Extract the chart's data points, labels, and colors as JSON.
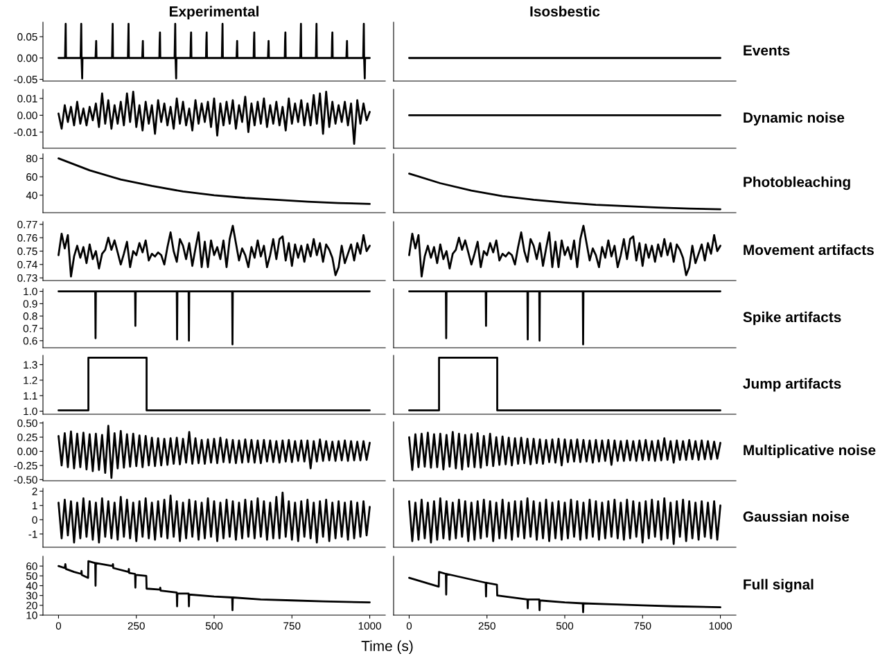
{
  "chart_data": [
    {
      "type": "line",
      "title": "Experimental",
      "xlim": [
        -50,
        1050
      ],
      "ylim": [
        -0.054,
        0.084
      ],
      "yticks": [
        {
          "value": -0.05,
          "label": "-0.05"
        },
        {
          "value": 0,
          "label": "0.00"
        },
        {
          "value": 0.05,
          "label": "0.05"
        }
      ],
      "tick_labels": "y",
      "series": [
        {
          "color": "#000000",
          "x": [
            0,
            21,
            22,
            23,
            24,
            71,
            72,
            73,
            74,
            76,
            77,
            119,
            121,
            122,
            172,
            173,
            174,
            175,
            223,
            224,
            225,
            226,
            269,
            271,
            272,
            324,
            325,
            326,
            327,
            373,
            374,
            375,
            376,
            378,
            379,
            424,
            425,
            426,
            427,
            474,
            475,
            476,
            477,
            525,
            527,
            528,
            572,
            574,
            575,
            627,
            628,
            629,
            630,
            673,
            675,
            676,
            727,
            728,
            729,
            730,
            777,
            778,
            779,
            780,
            827,
            828,
            829,
            830,
            878,
            879,
            880,
            881,
            925,
            927,
            928,
            979,
            980,
            981,
            982,
            984,
            985,
            1000
          ],
          "values": [
            0,
            0,
            0.04,
            0.08,
            0,
            0,
            0.04,
            0.08,
            0,
            -0.048,
            0,
            0,
            0.04,
            0,
            0,
            0.04,
            0.08,
            0,
            0,
            0.04,
            0.08,
            0,
            0,
            0.04,
            0,
            0,
            0.04,
            0.06,
            0,
            0,
            0.04,
            0.08,
            0,
            -0.048,
            0,
            0,
            0.04,
            0.06,
            0,
            0,
            0.04,
            0.06,
            0,
            0,
            0.08,
            0,
            0,
            0.04,
            0,
            0,
            0.04,
            0.06,
            0,
            0,
            0.04,
            0,
            0,
            0.04,
            0.06,
            0,
            0,
            0.04,
            0.08,
            0,
            0,
            0.04,
            0.08,
            0,
            0,
            0.04,
            0.06,
            0,
            0,
            0.04,
            0,
            0,
            0.04,
            0.08,
            0,
            -0.048,
            0,
            0
          ]
        }
      ]
    },
    {
      "type": "line",
      "title": "Isosbestic",
      "ylabel": "Events",
      "xlim": [
        -50,
        1050
      ],
      "ylim": [
        -0.054,
        0.084
      ],
      "tick_labels": false,
      "series": [
        {
          "color": "#000000",
          "x": [
            0,
            1000
          ],
          "values": [
            0,
            0
          ]
        }
      ]
    },
    {
      "type": "line",
      "xlim": [
        -50,
        1050
      ],
      "ylim": [
        -0.0196,
        0.0154
      ],
      "yticks": [
        {
          "value": -0.01,
          "label": "-0.01"
        },
        {
          "value": 0,
          "label": "0.00"
        },
        {
          "value": 0.01,
          "label": "0.01"
        }
      ],
      "tick_labels": "y",
      "series": [
        {
          "color": "#000000",
          "x": [
            0,
            10,
            20,
            30,
            40,
            50,
            60,
            70,
            80,
            90,
            100,
            110,
            120,
            130,
            140,
            150,
            160,
            170,
            180,
            190,
            200,
            210,
            220,
            230,
            240,
            250,
            260,
            270,
            280,
            290,
            300,
            310,
            320,
            330,
            340,
            350,
            360,
            370,
            380,
            390,
            400,
            410,
            420,
            430,
            440,
            450,
            460,
            470,
            480,
            490,
            500,
            510,
            520,
            530,
            540,
            550,
            560,
            570,
            580,
            590,
            600,
            610,
            620,
            630,
            640,
            650,
            660,
            670,
            680,
            690,
            700,
            710,
            720,
            730,
            740,
            750,
            760,
            770,
            780,
            790,
            800,
            810,
            820,
            830,
            840,
            850,
            860,
            870,
            880,
            890,
            900,
            910,
            920,
            930,
            940,
            950,
            960,
            970,
            980,
            990,
            1000
          ],
          "values": [
            0.001,
            -0.008,
            0.006,
            -0.004,
            0.005,
            -0.006,
            0.008,
            -0.005,
            0.004,
            -0.006,
            0.005,
            -0.003,
            0.007,
            -0.007,
            0.013,
            -0.005,
            0.009,
            -0.008,
            0.006,
            -0.005,
            0.008,
            -0.006,
            0.013,
            -0.004,
            0.014,
            -0.007,
            0.006,
            -0.009,
            0.008,
            -0.005,
            0.006,
            -0.011,
            0.009,
            -0.004,
            0.007,
            -0.006,
            0.005,
            -0.008,
            0.01,
            -0.005,
            0.008,
            -0.006,
            0.004,
            -0.009,
            0.009,
            -0.005,
            0.007,
            -0.004,
            0.008,
            -0.007,
            0.01,
            -0.012,
            0.007,
            -0.006,
            0.008,
            -0.005,
            0.009,
            -0.008,
            0.006,
            -0.004,
            0.011,
            -0.01,
            0.007,
            -0.006,
            0.008,
            -0.005,
            0.01,
            -0.007,
            0.006,
            -0.005,
            0.008,
            -0.006,
            0.005,
            -0.009,
            0.01,
            -0.005,
            0.007,
            -0.004,
            0.009,
            -0.006,
            0.007,
            -0.006,
            0.012,
            -0.005,
            0.013,
            -0.011,
            0.014,
            -0.007,
            0.008,
            -0.005,
            0.006,
            -0.004,
            0.008,
            -0.006,
            0.007,
            -0.017,
            0.009,
            -0.005,
            0.007,
            -0.003,
            0.002
          ]
        }
      ]
    },
    {
      "type": "line",
      "ylabel": "Dynamic noise",
      "xlim": [
        -50,
        1050
      ],
      "ylim": [
        -0.0196,
        0.0154
      ],
      "tick_labels": false,
      "series": [
        {
          "color": "#000000",
          "x": [
            0,
            1000
          ],
          "values": [
            0,
            0
          ]
        }
      ]
    },
    {
      "type": "line",
      "xlim": [
        -50,
        1050
      ],
      "ylim": [
        21,
        85
      ],
      "yticks": [
        40,
        60,
        80
      ],
      "tick_labels": "y",
      "series": [
        {
          "color": "#000000",
          "x": [
            0,
            100,
            200,
            300,
            400,
            500,
            600,
            700,
            800,
            900,
            1000
          ],
          "values": [
            80,
            67,
            57,
            50,
            44,
            40,
            37,
            35,
            33,
            31.5,
            30.5
          ]
        }
      ]
    },
    {
      "type": "line",
      "ylabel": "Photobleaching",
      "xlim": [
        -50,
        1050
      ],
      "ylim": [
        21,
        85
      ],
      "tick_labels": false,
      "series": [
        {
          "color": "#000000",
          "x": [
            0,
            100,
            200,
            300,
            400,
            500,
            600,
            700,
            800,
            900,
            1000
          ],
          "values": [
            63.5,
            53,
            45,
            39,
            35,
            32,
            29.5,
            28,
            26.5,
            25.5,
            24.7
          ]
        }
      ]
    },
    {
      "type": "line",
      "xlim": [
        -50,
        1050
      ],
      "ylim": [
        0.728,
        0.772
      ],
      "yticks": [
        0.73,
        0.74,
        0.75,
        0.76,
        0.77
      ],
      "tick_labels": "y",
      "series": [
        {
          "color": "#000000",
          "x": [
            0,
            10,
            20,
            30,
            40,
            50,
            60,
            70,
            80,
            90,
            100,
            110,
            120,
            130,
            140,
            150,
            160,
            170,
            180,
            190,
            200,
            210,
            220,
            230,
            240,
            250,
            260,
            270,
            280,
            290,
            300,
            310,
            320,
            330,
            340,
            350,
            360,
            370,
            380,
            390,
            400,
            410,
            420,
            430,
            440,
            450,
            460,
            470,
            480,
            490,
            500,
            510,
            520,
            530,
            540,
            550,
            560,
            570,
            580,
            590,
            600,
            610,
            620,
            630,
            640,
            650,
            660,
            670,
            680,
            690,
            700,
            710,
            720,
            730,
            740,
            750,
            760,
            770,
            780,
            790,
            800,
            810,
            820,
            830,
            840,
            850,
            860,
            870,
            880,
            890,
            900,
            910,
            920,
            930,
            940,
            950,
            960,
            970,
            980,
            990,
            1000
          ],
          "values": [
            0.747,
            0.763,
            0.752,
            0.762,
            0.731,
            0.746,
            0.754,
            0.745,
            0.753,
            0.741,
            0.755,
            0.744,
            0.75,
            0.737,
            0.748,
            0.751,
            0.76,
            0.751,
            0.758,
            0.749,
            0.74,
            0.748,
            0.757,
            0.738,
            0.75,
            0.747,
            0.756,
            0.749,
            0.758,
            0.743,
            0.748,
            0.746,
            0.749,
            0.747,
            0.74,
            0.753,
            0.764,
            0.75,
            0.742,
            0.759,
            0.754,
            0.744,
            0.756,
            0.739,
            0.752,
            0.764,
            0.738,
            0.757,
            0.738,
            0.758,
            0.747,
            0.753,
            0.744,
            0.758,
            0.738,
            0.759,
            0.769,
            0.756,
            0.743,
            0.752,
            0.747,
            0.738,
            0.753,
            0.745,
            0.758,
            0.746,
            0.754,
            0.738,
            0.747,
            0.759,
            0.744,
            0.759,
            0.761,
            0.743,
            0.756,
            0.739,
            0.755,
            0.745,
            0.754,
            0.742,
            0.755,
            0.746,
            0.759,
            0.747,
            0.756,
            0.742,
            0.755,
            0.751,
            0.745,
            0.732,
            0.738,
            0.754,
            0.741,
            0.748,
            0.755,
            0.743,
            0.756,
            0.748,
            0.762,
            0.75,
            0.754
          ]
        }
      ]
    },
    {
      "type": "line",
      "ylabel": "Movement artifacts",
      "xlim": [
        -50,
        1050
      ],
      "ylim": [
        0.728,
        0.772
      ],
      "tick_labels": false,
      "series": [
        {
          "color": "#000000",
          "x": [
            0,
            10,
            20,
            30,
            40,
            50,
            60,
            70,
            80,
            90,
            100,
            110,
            120,
            130,
            140,
            150,
            160,
            170,
            180,
            190,
            200,
            210,
            220,
            230,
            240,
            250,
            260,
            270,
            280,
            290,
            300,
            310,
            320,
            330,
            340,
            350,
            360,
            370,
            380,
            390,
            400,
            410,
            420,
            430,
            440,
            450,
            460,
            470,
            480,
            490,
            500,
            510,
            520,
            530,
            540,
            550,
            560,
            570,
            580,
            590,
            600,
            610,
            620,
            630,
            640,
            650,
            660,
            670,
            680,
            690,
            700,
            710,
            720,
            730,
            740,
            750,
            760,
            770,
            780,
            790,
            800,
            810,
            820,
            830,
            840,
            850,
            860,
            870,
            880,
            890,
            900,
            910,
            920,
            930,
            940,
            950,
            960,
            970,
            980,
            990,
            1000
          ],
          "values": [
            0.747,
            0.763,
            0.752,
            0.762,
            0.731,
            0.746,
            0.754,
            0.745,
            0.753,
            0.741,
            0.755,
            0.744,
            0.75,
            0.737,
            0.748,
            0.751,
            0.76,
            0.751,
            0.758,
            0.749,
            0.74,
            0.748,
            0.757,
            0.738,
            0.75,
            0.747,
            0.756,
            0.749,
            0.758,
            0.743,
            0.748,
            0.746,
            0.749,
            0.747,
            0.74,
            0.753,
            0.764,
            0.75,
            0.742,
            0.759,
            0.754,
            0.744,
            0.756,
            0.739,
            0.752,
            0.764,
            0.738,
            0.757,
            0.738,
            0.758,
            0.747,
            0.753,
            0.744,
            0.758,
            0.738,
            0.759,
            0.769,
            0.756,
            0.743,
            0.752,
            0.747,
            0.738,
            0.753,
            0.745,
            0.758,
            0.746,
            0.754,
            0.738,
            0.747,
            0.759,
            0.744,
            0.759,
            0.761,
            0.743,
            0.756,
            0.739,
            0.755,
            0.745,
            0.754,
            0.742,
            0.755,
            0.746,
            0.759,
            0.747,
            0.756,
            0.742,
            0.755,
            0.751,
            0.745,
            0.732,
            0.738,
            0.754,
            0.741,
            0.748,
            0.755,
            0.743,
            0.756,
            0.748,
            0.762,
            0.75,
            0.754
          ]
        }
      ]
    },
    {
      "type": "line",
      "xlim": [
        -50,
        1050
      ],
      "ylim": [
        0.543,
        1.02
      ],
      "yticks": [
        0.6,
        0.7,
        0.8,
        0.9,
        {
          "value": 1,
          "label": "1.0"
        }
      ],
      "tick_labels": "y",
      "series": [
        {
          "color": "#000000",
          "x": [
            0,
            118,
            119,
            120,
            246,
            247,
            248,
            380,
            381,
            382,
            418,
            419,
            420,
            558,
            559,
            560,
            1000
          ],
          "values": [
            1,
            1,
            0.62,
            1,
            1,
            0.72,
            1,
            1,
            0.61,
            1,
            1,
            0.6,
            1,
            1,
            0.57,
            1,
            1
          ]
        }
      ]
    },
    {
      "type": "line",
      "ylabel": "Spike artifacts",
      "xlim": [
        -50,
        1050
      ],
      "ylim": [
        0.543,
        1.02
      ],
      "tick_labels": false,
      "series": [
        {
          "color": "#000000",
          "x": [
            0,
            118,
            119,
            120,
            246,
            247,
            248,
            380,
            381,
            382,
            418,
            419,
            420,
            558,
            559,
            560,
            1000
          ],
          "values": [
            1,
            1,
            0.62,
            1,
            1,
            0.72,
            1,
            1,
            0.61,
            1,
            1,
            0.6,
            1,
            1,
            0.57,
            1,
            1
          ]
        }
      ]
    },
    {
      "type": "line",
      "xlim": [
        -50,
        1050
      ],
      "ylim": [
        0.98,
        1.36
      ],
      "yticks": [
        {
          "value": 1,
          "label": "1.0"
        },
        1.1,
        1.2,
        1.3
      ],
      "tick_labels": "y",
      "series": [
        {
          "color": "#000000",
          "x": [
            0,
            96,
            96,
            283,
            283,
            1000
          ],
          "values": [
            1.005,
            1.005,
            1.345,
            1.345,
            1.005,
            1.005
          ]
        }
      ]
    },
    {
      "type": "line",
      "ylabel": "Jump artifacts",
      "xlim": [
        -50,
        1050
      ],
      "ylim": [
        0.98,
        1.36
      ],
      "tick_labels": false,
      "series": [
        {
          "color": "#000000",
          "x": [
            0,
            96,
            96,
            283,
            283,
            1000
          ],
          "values": [
            1.005,
            1.005,
            1.345,
            1.345,
            1.005,
            1.005
          ]
        }
      ]
    },
    {
      "type": "line",
      "xlim": [
        -50,
        1050
      ],
      "ylim": [
        -0.52,
        0.52
      ],
      "yticks": [
        {
          "value": -0.5,
          "label": "-0.50"
        },
        {
          "value": -0.25,
          "label": "-0.25"
        },
        {
          "value": 0,
          "label": "0.00"
        },
        {
          "value": 0.25,
          "label": "0.25"
        },
        {
          "value": 0.5,
          "label": "0.50"
        }
      ],
      "tick_labels": "y",
      "series": [
        {
          "color": "#000000",
          "x": [
            0,
            10,
            20,
            30,
            40,
            50,
            60,
            70,
            80,
            90,
            100,
            110,
            120,
            130,
            140,
            150,
            160,
            170,
            180,
            190,
            200,
            210,
            220,
            230,
            240,
            250,
            260,
            270,
            280,
            290,
            300,
            310,
            320,
            330,
            340,
            350,
            360,
            370,
            380,
            390,
            400,
            410,
            420,
            430,
            440,
            450,
            460,
            470,
            480,
            490,
            500,
            510,
            520,
            530,
            540,
            550,
            560,
            570,
            580,
            590,
            600,
            610,
            620,
            630,
            640,
            650,
            660,
            670,
            680,
            690,
            700,
            710,
            720,
            730,
            740,
            750,
            760,
            770,
            780,
            790,
            800,
            810,
            820,
            830,
            840,
            850,
            860,
            870,
            880,
            890,
            900,
            910,
            920,
            930,
            940,
            950,
            960,
            970,
            980,
            990,
            1000
          ],
          "values": [
            0.27,
            -0.25,
            0.32,
            -0.28,
            0.35,
            -0.3,
            0.31,
            -0.28,
            0.33,
            -0.32,
            0.3,
            -0.35,
            0.31,
            -0.33,
            0.29,
            -0.38,
            0.45,
            -0.47,
            0.32,
            -0.3,
            0.36,
            -0.29,
            0.3,
            -0.27,
            0.31,
            -0.26,
            0.28,
            -0.28,
            0.27,
            -0.25,
            0.24,
            -0.26,
            0.23,
            -0.25,
            0.22,
            -0.24,
            0.23,
            -0.22,
            0.24,
            -0.23,
            0.22,
            -0.2,
            0.34,
            -0.22,
            0.23,
            -0.21,
            0.2,
            -0.22,
            0.21,
            -0.2,
            0.22,
            -0.21,
            0.24,
            -0.19,
            0.21,
            -0.2,
            0.2,
            -0.21,
            0.19,
            -0.2,
            0.21,
            -0.19,
            0.2,
            -0.2,
            0.19,
            -0.21,
            0.2,
            -0.18,
            0.19,
            -0.19,
            0.18,
            -0.2,
            0.19,
            -0.18,
            0.2,
            -0.19,
            0.18,
            -0.17,
            0.19,
            -0.18,
            0.19,
            -0.3,
            0.18,
            -0.18,
            0.21,
            -0.17,
            0.18,
            -0.16,
            0.17,
            -0.17,
            0.18,
            -0.16,
            0.19,
            -0.17,
            0.18,
            -0.16,
            0.17,
            -0.16,
            0.18,
            -0.15,
            0.15
          ]
        }
      ]
    },
    {
      "type": "line",
      "ylabel": "Multiplicative noise",
      "xlim": [
        -50,
        1050
      ],
      "ylim": [
        -0.52,
        0.52
      ],
      "tick_labels": false,
      "series": [
        {
          "color": "#000000",
          "x": [
            0,
            10,
            20,
            30,
            40,
            50,
            60,
            70,
            80,
            90,
            100,
            110,
            120,
            130,
            140,
            150,
            160,
            170,
            180,
            190,
            200,
            210,
            220,
            230,
            240,
            250,
            260,
            270,
            280,
            290,
            300,
            310,
            320,
            330,
            340,
            350,
            360,
            370,
            380,
            390,
            400,
            410,
            420,
            430,
            440,
            450,
            460,
            470,
            480,
            490,
            500,
            510,
            520,
            530,
            540,
            550,
            560,
            570,
            580,
            590,
            600,
            610,
            620,
            630,
            640,
            650,
            660,
            670,
            680,
            690,
            700,
            710,
            720,
            730,
            740,
            750,
            760,
            770,
            780,
            790,
            800,
            810,
            820,
            830,
            840,
            850,
            860,
            870,
            880,
            890,
            900,
            910,
            920,
            930,
            940,
            950,
            960,
            970,
            980,
            990,
            1000
          ],
          "values": [
            0.25,
            -0.33,
            0.3,
            -0.28,
            0.31,
            -0.27,
            0.33,
            -0.29,
            0.3,
            -0.28,
            0.31,
            -0.32,
            0.29,
            -0.27,
            0.34,
            -0.3,
            0.31,
            -0.32,
            0.29,
            -0.27,
            0.3,
            -0.28,
            0.32,
            -0.29,
            0.27,
            -0.25,
            0.31,
            -0.26,
            0.25,
            -0.24,
            0.26,
            -0.23,
            0.24,
            -0.25,
            0.23,
            -0.22,
            0.24,
            -0.21,
            0.22,
            -0.23,
            0.22,
            -0.21,
            0.21,
            -0.22,
            0.2,
            -0.19,
            0.21,
            -0.2,
            0.22,
            -0.25,
            0.21,
            -0.19,
            0.2,
            -0.18,
            0.21,
            -0.19,
            0.2,
            -0.18,
            0.19,
            -0.2,
            0.2,
            -0.18,
            0.19,
            -0.17,
            0.2,
            -0.24,
            0.19,
            -0.17,
            0.18,
            -0.17,
            0.19,
            -0.16,
            0.18,
            -0.17,
            0.19,
            -0.16,
            0.2,
            -0.16,
            0.18,
            -0.17,
            0.19,
            -0.16,
            0.23,
            -0.15,
            0.18,
            -0.2,
            0.19,
            -0.15,
            0.18,
            -0.15,
            0.2,
            -0.14,
            0.18,
            -0.15,
            0.19,
            -0.14,
            0.18,
            -0.14,
            0.17,
            -0.13,
            0.15
          ]
        }
      ]
    },
    {
      "type": "line",
      "xlim": [
        -50,
        1050
      ],
      "ylim": [
        -1.93,
        2.2
      ],
      "yticks": [
        {
          "value": -1,
          "label": "-1"
        },
        0,
        1,
        2
      ],
      "tick_labels": "y",
      "series": [
        {
          "color": "#000000",
          "x": [
            0,
            10,
            20,
            30,
            40,
            50,
            60,
            70,
            80,
            90,
            100,
            110,
            120,
            130,
            140,
            150,
            160,
            170,
            180,
            190,
            200,
            210,
            220,
            230,
            240,
            250,
            260,
            270,
            280,
            290,
            300,
            310,
            320,
            330,
            340,
            350,
            360,
            370,
            380,
            390,
            400,
            410,
            420,
            430,
            440,
            450,
            460,
            470,
            480,
            490,
            500,
            510,
            520,
            530,
            540,
            550,
            560,
            570,
            580,
            590,
            600,
            610,
            620,
            630,
            640,
            650,
            660,
            670,
            680,
            690,
            700,
            710,
            720,
            730,
            740,
            750,
            760,
            770,
            780,
            790,
            800,
            810,
            820,
            830,
            840,
            850,
            860,
            870,
            880,
            890,
            900,
            910,
            920,
            930,
            940,
            950,
            960,
            970,
            980,
            990,
            1000
          ],
          "values": [
            1.2,
            -1.3,
            1.4,
            -1.1,
            1.3,
            -1.6,
            1.2,
            -1.3,
            1.5,
            -1.2,
            1.3,
            -1.4,
            1.2,
            -1.6,
            1.5,
            -1.2,
            1.3,
            -1.3,
            1.2,
            -1.4,
            1.6,
            -1.2,
            1.4,
            -1.3,
            1.2,
            -1.5,
            1.3,
            -1.2,
            1.5,
            -1.3,
            1.2,
            -1.4,
            1.3,
            -1.2,
            1.4,
            -1.3,
            1.7,
            -1.2,
            1.3,
            -1.5,
            1.2,
            -1.3,
            1.4,
            -1.2,
            1.3,
            -1.4,
            1.2,
            -1.3,
            1.5,
            -1.2,
            1.3,
            -1.5,
            1.2,
            -1.3,
            1.4,
            -1.2,
            1.3,
            -1.4,
            1.2,
            -1.3,
            1.4,
            -1.2,
            1.3,
            -1.3,
            1.5,
            -1.2,
            1.3,
            -1.4,
            1.2,
            -1.3,
            1.6,
            -1.3,
            1.9,
            -1.2,
            1.3,
            -1.4,
            1.2,
            -1.5,
            1.3,
            -1.2,
            1.4,
            -1.3,
            1.2,
            -1.6,
            1.3,
            -1.2,
            1.4,
            -1.5,
            1.2,
            -1.3,
            1.3,
            -1.2,
            1.2,
            -1.4,
            1.3,
            -1.3,
            1.2,
            -1.2,
            1.3,
            -1.1,
            0.9
          ]
        }
      ]
    },
    {
      "type": "line",
      "ylabel": "Gaussian noise",
      "xlim": [
        -50,
        1050
      ],
      "ylim": [
        -1.93,
        2.2
      ],
      "tick_labels": false,
      "series": [
        {
          "color": "#000000",
          "x": [
            0,
            10,
            20,
            30,
            40,
            50,
            60,
            70,
            80,
            90,
            100,
            110,
            120,
            130,
            140,
            150,
            160,
            170,
            180,
            190,
            200,
            210,
            220,
            230,
            240,
            250,
            260,
            270,
            280,
            290,
            300,
            310,
            320,
            330,
            340,
            350,
            360,
            370,
            380,
            390,
            400,
            410,
            420,
            430,
            440,
            450,
            460,
            470,
            480,
            490,
            500,
            510,
            520,
            530,
            540,
            550,
            560,
            570,
            580,
            590,
            600,
            610,
            620,
            630,
            640,
            650,
            660,
            670,
            680,
            690,
            700,
            710,
            720,
            730,
            740,
            750,
            760,
            770,
            780,
            790,
            800,
            810,
            820,
            830,
            840,
            850,
            860,
            870,
            880,
            890,
            900,
            910,
            920,
            930,
            940,
            950,
            960,
            970,
            980,
            990,
            1000
          ],
          "values": [
            1.3,
            -1.5,
            1.2,
            -1.4,
            1.4,
            -1.3,
            1.2,
            -1.6,
            1.3,
            -1.4,
            1.5,
            -1.3,
            1.3,
            -1.4,
            1.2,
            -1.3,
            1.4,
            -1.2,
            1.3,
            -1.5,
            1.2,
            -1.4,
            1.3,
            -1.3,
            1.4,
            -1.2,
            1.3,
            -1.5,
            1.2,
            -1.3,
            1.4,
            -1.3,
            1.2,
            -1.4,
            1.3,
            -1.2,
            1.3,
            -1.3,
            1.5,
            -1.2,
            1.3,
            -1.4,
            1.2,
            -1.3,
            1.4,
            -1.5,
            1.2,
            -1.3,
            1.3,
            -1.4,
            1.2,
            -1.3,
            1.4,
            -1.2,
            1.3,
            -1.4,
            1.2,
            -1.3,
            1.4,
            -1.2,
            1.3,
            -1.4,
            1.2,
            -1.3,
            1.3,
            -1.2,
            1.4,
            -1.3,
            1.2,
            -1.4,
            1.4,
            -1.3,
            1.3,
            -1.2,
            1.2,
            -1.6,
            1.3,
            -1.3,
            1.4,
            -1.2,
            1.3,
            -1.4,
            1.5,
            -1.3,
            1.2,
            -1.7,
            1.3,
            -1.2,
            1.4,
            -1.5,
            1.3,
            -1.3,
            1.2,
            -1.4,
            1.3,
            -1.2,
            1.2,
            -1.3,
            1.3,
            -1.4,
            1.0
          ]
        }
      ]
    },
    {
      "type": "line",
      "xlabel": "Time (s)",
      "xlim": [
        -50,
        1050
      ],
      "xticks": [
        0,
        250,
        500,
        750,
        1000
      ],
      "ylim": [
        10,
        70
      ],
      "yticks": [
        10,
        20,
        30,
        40,
        50,
        60
      ],
      "series": [
        {
          "color": "#000000",
          "x": [
            0,
            20,
            22,
            24,
            50,
            73,
            74,
            75,
            95,
            96,
            118,
            119,
            120,
            174,
            175,
            176,
            225,
            226,
            227,
            246,
            247,
            248,
            282,
            283,
            326,
            327,
            328,
            380,
            381,
            382,
            418,
            419,
            420,
            500,
            558,
            559,
            560,
            650,
            750,
            850,
            1000
          ],
          "values": [
            60,
            58,
            62,
            57,
            54,
            52,
            55,
            51,
            48,
            65,
            63,
            40,
            63,
            60,
            62,
            58,
            54,
            57,
            53,
            52,
            38,
            51,
            50,
            37,
            36,
            38,
            35,
            33,
            19,
            32,
            32,
            19,
            31,
            29,
            28,
            15,
            28,
            26,
            25,
            24,
            23
          ]
        }
      ]
    },
    {
      "type": "line",
      "xlim": [
        -50,
        1050
      ],
      "xticks": [
        0,
        250,
        500,
        750,
        1000
      ],
      "ylim": [
        10,
        70
      ],
      "tick_labels": "x",
      "ylabel": "Full signal",
      "series": [
        {
          "color": "#000000",
          "x": [
            0,
            95,
            96,
            118,
            119,
            120,
            246,
            247,
            248,
            282,
            283,
            380,
            381,
            382,
            418,
            419,
            420,
            500,
            558,
            559,
            560,
            650,
            750,
            850,
            1000
          ],
          "values": [
            48,
            39,
            54,
            52,
            31,
            52,
            43,
            29,
            43,
            41,
            30,
            26,
            17,
            26,
            26,
            15,
            25,
            23,
            22,
            13,
            22,
            21,
            20,
            19,
            18
          ]
        }
      ]
    }
  ]
}
